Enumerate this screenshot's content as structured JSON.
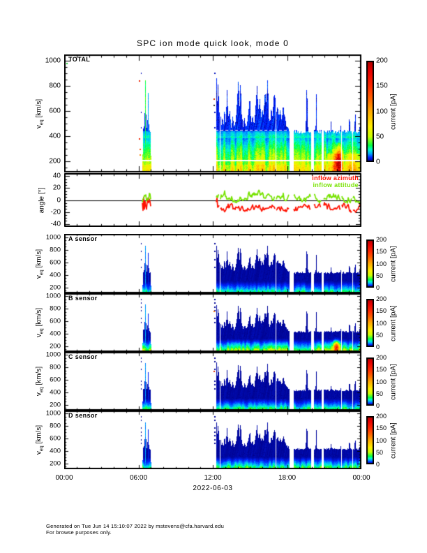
{
  "title": "SPC ion mode quick look, mode 0",
  "footer": {
    "line1": "Generated on Tue Jun 14 15:10:07 2022 by mstevens@cfa.harvard.edu",
    "line2": "For browse purposes only."
  },
  "colors": {
    "frame": "#000000",
    "inflow_azimuth": "#ff1100",
    "inflow_attitude": "#77e300",
    "white_line": "#ffffff"
  },
  "chart_data": {
    "type": "heatmap",
    "title": "SPC ion mode quick look, mode 0",
    "x_axis": {
      "label": "2022-06-03",
      "tick_labels": [
        "00:00",
        "06:00",
        "12:00",
        "18:00",
        "00:00"
      ],
      "tick_hours": [
        0,
        6,
        12,
        18,
        24
      ],
      "minor_step_hours": 1,
      "range_hours": [
        0,
        24
      ]
    },
    "velocity_axis": {
      "label_prefix": "v",
      "label_sub": "eq",
      "label_suffix": " [km/s]",
      "ticks": [
        200,
        400,
        600,
        800,
        1000
      ],
      "minor_step": 50,
      "range": [
        110,
        1050
      ]
    },
    "angle_axis": {
      "label": "angle [°]",
      "ticks": [
        -40,
        -20,
        0,
        20,
        40
      ],
      "minor_step": 5,
      "range": [
        -45,
        45
      ]
    },
    "colorbar": {
      "label": "current [pA]",
      "tick_values": [
        0,
        50,
        100,
        150,
        200
      ],
      "range": [
        0,
        200
      ],
      "colormap_stops": [
        [
          0.0,
          "#000088"
        ],
        [
          0.04,
          "#0022ff"
        ],
        [
          0.08,
          "#00aaff"
        ],
        [
          0.12,
          "#00ffcc"
        ],
        [
          0.16,
          "#00ff44"
        ],
        [
          0.25,
          "#ccff00"
        ],
        [
          0.35,
          "#ffee00"
        ],
        [
          0.5,
          "#ffaa00"
        ],
        [
          0.62,
          "#ff6600"
        ],
        [
          0.75,
          "#ff2a00"
        ],
        [
          0.9,
          "#e80000"
        ],
        [
          1.0,
          "#b00000"
        ]
      ]
    },
    "data_intervals_hours": [
      [
        6.33,
        7.02
      ],
      [
        12.27,
        18.2
      ],
      [
        18.55,
        19.95
      ],
      [
        20.18,
        20.78
      ],
      [
        20.98,
        24.0
      ]
    ],
    "thin_gaps_hours": [
      12.58,
      17.08,
      22.42,
      23.3
    ],
    "dot_column_hours": [
      6.17,
      6.21,
      12.14,
      12.18
    ],
    "envelope_breakpoints": [
      [
        6.33,
        210
      ],
      [
        6.37,
        440
      ],
      [
        6.47,
        480
      ],
      [
        6.52,
        620
      ],
      [
        6.56,
        875
      ],
      [
        6.6,
        640
      ],
      [
        6.65,
        480
      ],
      [
        6.7,
        450
      ],
      [
        6.74,
        560
      ],
      [
        6.79,
        745
      ],
      [
        6.83,
        520
      ],
      [
        6.9,
        445
      ],
      [
        6.97,
        430
      ],
      [
        7.02,
        210
      ],
      [
        12.27,
        480
      ],
      [
        12.31,
        870
      ],
      [
        12.38,
        620
      ],
      [
        12.44,
        880
      ],
      [
        12.52,
        560
      ],
      [
        12.6,
        700
      ],
      [
        12.68,
        480
      ],
      [
        12.78,
        560
      ],
      [
        12.86,
        470
      ],
      [
        12.95,
        640
      ],
      [
        13.05,
        500
      ],
      [
        13.15,
        770
      ],
      [
        13.25,
        540
      ],
      [
        13.38,
        610
      ],
      [
        13.5,
        470
      ],
      [
        13.62,
        570
      ],
      [
        13.72,
        470
      ],
      [
        13.85,
        520
      ],
      [
        13.98,
        690
      ],
      [
        14.08,
        880
      ],
      [
        14.16,
        600
      ],
      [
        14.24,
        870
      ],
      [
        14.34,
        560
      ],
      [
        14.45,
        480
      ],
      [
        14.58,
        540
      ],
      [
        14.7,
        465
      ],
      [
        14.85,
        555
      ],
      [
        15.0,
        710
      ],
      [
        15.1,
        500
      ],
      [
        15.22,
        570
      ],
      [
        15.33,
        480
      ],
      [
        15.45,
        630
      ],
      [
        15.58,
        805
      ],
      [
        15.68,
        600
      ],
      [
        15.8,
        690
      ],
      [
        15.9,
        545
      ],
      [
        16.0,
        625
      ],
      [
        16.1,
        565
      ],
      [
        16.22,
        765
      ],
      [
        16.32,
        650
      ],
      [
        16.44,
        885
      ],
      [
        16.52,
        560
      ],
      [
        16.62,
        505
      ],
      [
        16.72,
        625
      ],
      [
        16.82,
        565
      ],
      [
        16.92,
        705
      ],
      [
        17.02,
        755
      ],
      [
        17.12,
        560
      ],
      [
        17.24,
        645
      ],
      [
        17.34,
        560
      ],
      [
        17.46,
        605
      ],
      [
        17.56,
        525
      ],
      [
        17.7,
        645
      ],
      [
        17.8,
        560
      ],
      [
        17.95,
        485
      ],
      [
        18.1,
        465
      ],
      [
        18.2,
        440
      ],
      [
        18.55,
        435
      ],
      [
        19.5,
        435
      ],
      [
        19.6,
        855
      ],
      [
        19.7,
        435
      ],
      [
        19.95,
        435
      ],
      [
        20.18,
        435
      ],
      [
        20.3,
        435
      ],
      [
        20.36,
        765
      ],
      [
        20.42,
        435
      ],
      [
        20.78,
        435
      ],
      [
        20.98,
        435
      ],
      [
        21.5,
        435
      ],
      [
        21.56,
        525
      ],
      [
        21.62,
        435
      ],
      [
        22.3,
        435
      ],
      [
        22.36,
        505
      ],
      [
        22.42,
        435
      ],
      [
        22.98,
        435
      ],
      [
        23.04,
        625
      ],
      [
        23.1,
        435
      ],
      [
        23.44,
        435
      ],
      [
        23.5,
        645
      ],
      [
        23.56,
        435
      ],
      [
        23.84,
        435
      ],
      [
        23.9,
        565
      ],
      [
        23.96,
        470
      ],
      [
        24.0,
        470
      ]
    ],
    "panels": [
      {
        "id": "total",
        "kind": "spectrogram",
        "label": "TOTAL",
        "seed": 11,
        "tail_pA": 7,
        "core_peak_pA": 62,
        "band_v": 440,
        "core_exp": 1.0,
        "edge_boost": 8,
        "white_line_v": 212,
        "white_dash_v": 452,
        "burst_core_boost": 34,
        "hot_spot": {
          "hours": [
            21.7,
            22.6
          ],
          "center_hour": 22.15,
          "v_center": 190,
          "v_sigma": 95,
          "peak_pA": 160
        },
        "warm_band": {
          "hours": [
            21.2,
            24.0
          ],
          "v_max": 260,
          "extra_pA": 26
        },
        "specks": [
          [
            0.15,
            985,
            "#22cc33"
          ],
          [
            6.02,
            845,
            "#ee2200"
          ],
          [
            6.03,
            385,
            "#ee2200"
          ],
          [
            6.06,
            300,
            "#ff5500"
          ],
          [
            6.08,
            255,
            "#ff8800"
          ],
          [
            12.08,
            700,
            "#cc2200"
          ],
          [
            12.08,
            648,
            "#222222"
          ],
          [
            23.9,
            208,
            "#ee2200"
          ]
        ]
      },
      {
        "id": "angle",
        "kind": "line",
        "label": "",
        "legend": [
          {
            "label": "inflow azimuth",
            "color": "#ff1100"
          },
          {
            "label": "inflow attitude",
            "color": "#77e300"
          }
        ],
        "series": [
          {
            "name": "inflow azimuth",
            "color": "#ff1100",
            "mean_deg": -13,
            "typical_range_deg": [
              -24,
              0
            ],
            "seed": 31
          },
          {
            "name": "inflow attitude",
            "color": "#77e300",
            "mean_deg": 4,
            "typical_range_deg": [
              -10,
              24
            ],
            "seed": 57
          }
        ],
        "zero_line": true
      },
      {
        "id": "sensor-a",
        "kind": "spectrogram",
        "label": "A sensor",
        "seed": 21,
        "tail_pA": 1.7,
        "core_peak_pA": 27,
        "band_v": 305,
        "core_exp": 1.35,
        "edge_boost": 0,
        "burst_core_boost": 15,
        "specks": []
      },
      {
        "id": "sensor-b",
        "kind": "spectrogram",
        "label": "B sensor",
        "seed": 22,
        "tail_pA": 1.8,
        "core_peak_pA": 44,
        "band_v": 318,
        "core_exp": 1.3,
        "edge_boost": 0,
        "burst_core_boost": 16,
        "hot_spot": {
          "hours": [
            21.55,
            22.45
          ],
          "center_hour": 22.0,
          "v_center": 185,
          "v_sigma": 75,
          "peak_pA": 120
        },
        "specks": [
          [
            12.06,
            770,
            "#ff7700"
          ]
        ]
      },
      {
        "id": "sensor-c",
        "kind": "spectrogram",
        "label": "C sensor",
        "seed": 23,
        "tail_pA": 1.7,
        "core_peak_pA": 31,
        "band_v": 305,
        "core_exp": 1.35,
        "edge_boost": 0,
        "burst_core_boost": 15,
        "specks": [
          [
            12.05,
            752,
            "#dd2200"
          ]
        ]
      },
      {
        "id": "sensor-d",
        "kind": "spectrogram",
        "label": "D sensor",
        "seed": 24,
        "tail_pA": 1.8,
        "core_peak_pA": 34,
        "band_v": 308,
        "core_exp": 1.3,
        "edge_boost": 0,
        "burst_core_boost": 15,
        "specks": []
      }
    ]
  }
}
